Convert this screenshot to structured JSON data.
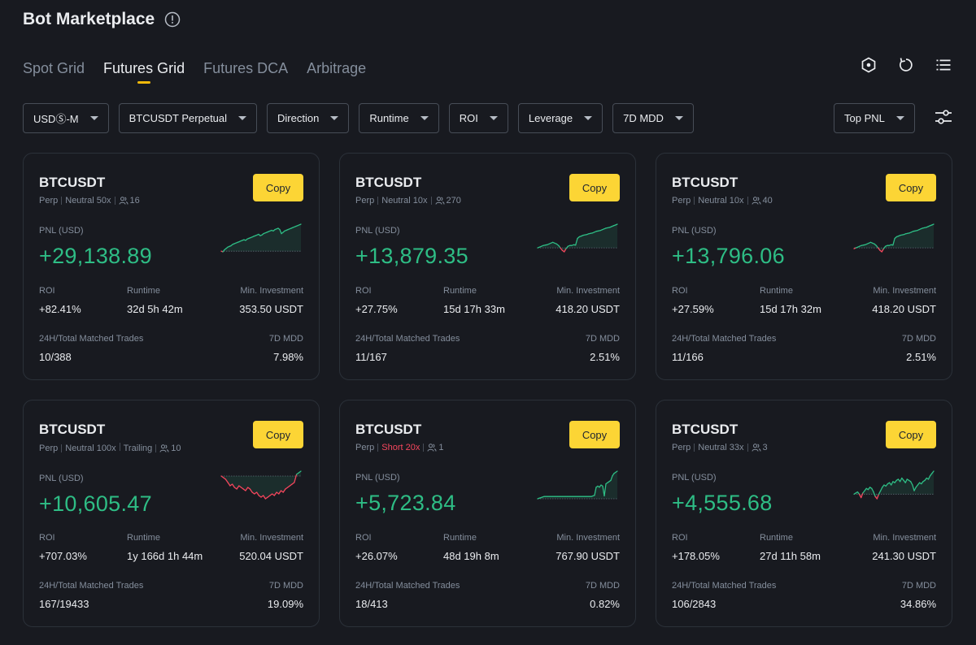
{
  "header": {
    "title": "Bot Marketplace"
  },
  "tabs": [
    {
      "label": "Spot Grid",
      "active": false
    },
    {
      "label": "Futures Grid",
      "active": true
    },
    {
      "label": "Futures DCA",
      "active": false
    },
    {
      "label": "Arbitrage",
      "active": false
    }
  ],
  "filters": [
    {
      "label": "USDⓈ-M"
    },
    {
      "label": "BTCUSDT Perpetual"
    },
    {
      "label": "Direction"
    },
    {
      "label": "Runtime"
    },
    {
      "label": "ROI"
    },
    {
      "label": "Leverage"
    },
    {
      "label": "7D MDD"
    }
  ],
  "sort": {
    "label": "Top PNL"
  },
  "labels": {
    "copy": "Copy",
    "pnl": "PNL (USD)",
    "roi": "ROI",
    "runtime": "Runtime",
    "min_investment": "Min. Investment",
    "matched_trades": "24H/Total Matched Trades",
    "mdd": "7D MDD"
  },
  "colors": {
    "up": "#2ebd85",
    "down": "#f6465d",
    "accent": "#fcd535"
  },
  "cards": [
    {
      "pair": "BTCUSDT",
      "type": "Perp",
      "direction": "Neutral 50x",
      "trailing": "",
      "copiers": "16",
      "pnl": "+29,138.89",
      "roi": "+82.41%",
      "runtime": "32d 5h 42m",
      "min_investment": "353.50 USDT",
      "matched_trades": "10/388",
      "mdd": "7.98%",
      "spark": [
        0,
        -0.5,
        1,
        2,
        3,
        3.5,
        4,
        5,
        5.5,
        6,
        6.5,
        7,
        7.5,
        8,
        8.5,
        8,
        9,
        9.5,
        10,
        10.5,
        11,
        11.5,
        12,
        12.5,
        11.5,
        12,
        13,
        13.5,
        14,
        14.5,
        15,
        15.5,
        15,
        16,
        16.5,
        17,
        16,
        13,
        14,
        15,
        15.5,
        16,
        16.5,
        17,
        17.5,
        18,
        18.5,
        19,
        19.5,
        20
      ]
    },
    {
      "pair": "BTCUSDT",
      "type": "Perp",
      "direction": "Neutral 10x",
      "trailing": "",
      "copiers": "270",
      "pnl": "+13,879.35",
      "roi": "+27.75%",
      "runtime": "15d 17h 33m",
      "min_investment": "418.20 USDT",
      "matched_trades": "11/167",
      "mdd": "2.51%",
      "spark": [
        0,
        1,
        2,
        3,
        3.5,
        4,
        5,
        6,
        7,
        6,
        5,
        3,
        0,
        -3,
        -5,
        -1,
        2,
        3,
        3,
        4,
        3.5,
        12,
        14,
        15,
        16,
        16.5,
        17,
        18,
        18.5,
        19,
        20,
        21,
        21.5,
        22,
        23,
        24,
        25,
        25.5,
        26,
        27,
        28,
        29,
        30
      ]
    },
    {
      "pair": "BTCUSDT",
      "type": "Perp",
      "direction": "Neutral 10x",
      "trailing": "",
      "copiers": "40",
      "pnl": "+13,796.06",
      "roi": "+27.59%",
      "runtime": "15d 17h 32m",
      "min_investment": "418.20 USDT",
      "matched_trades": "11/166",
      "mdd": "2.51%",
      "spark": [
        -1,
        0,
        1,
        2,
        3,
        3.5,
        4,
        5,
        6,
        7,
        6,
        5,
        3,
        0,
        -3,
        -5,
        -1,
        2,
        3,
        3,
        4,
        3.5,
        12,
        14,
        15,
        16,
        16.5,
        17,
        18,
        18.5,
        19,
        20,
        21,
        21.5,
        22,
        23,
        24,
        25,
        25.5,
        26,
        27,
        28,
        29,
        30
      ]
    },
    {
      "pair": "BTCUSDT",
      "type": "Perp",
      "direction": "Neutral 100x",
      "trailing": "Trailing",
      "copiers": "10",
      "pnl": "+10,605.47",
      "roi": "+707.03%",
      "runtime": "1y 166d 1h 44m",
      "min_investment": "520.04 USDT",
      "matched_trades": "167/19433",
      "mdd": "19.09%",
      "spark": [
        0,
        -1,
        -2,
        -4,
        -6,
        -5,
        -7,
        -8,
        -6,
        -7,
        -8,
        -9,
        -7,
        -8,
        -10,
        -11,
        -10,
        -12,
        -13,
        -12,
        -14,
        -13,
        -12,
        -11,
        -12,
        -10,
        -11,
        -9,
        -10,
        -8,
        -7,
        -6,
        -5,
        -4,
        1,
        2,
        3
      ]
    },
    {
      "pair": "BTCUSDT",
      "type": "Perp",
      "direction": "Short 20x",
      "trailing": "",
      "copiers": "1",
      "pnl": "+5,723.84",
      "roi": "+26.07%",
      "runtime": "48d 19h 8m",
      "min_investment": "767.90 USDT",
      "matched_trades": "18/413",
      "mdd": "0.82%",
      "spark": [
        0,
        0.5,
        1,
        1.5,
        2,
        2,
        2,
        2,
        2,
        2,
        2,
        2,
        2,
        2,
        2,
        2,
        2,
        2,
        2,
        2,
        2,
        2,
        2,
        2,
        2,
        2,
        2,
        2,
        2,
        2,
        2,
        2,
        2,
        2,
        2.5,
        3,
        10,
        11,
        10,
        12,
        11,
        2.5,
        13,
        14,
        15,
        16,
        20,
        22,
        23,
        24
      ]
    },
    {
      "pair": "BTCUSDT",
      "type": "Perp",
      "direction": "Neutral 33x",
      "trailing": "",
      "copiers": "3",
      "pnl": "+4,555.68",
      "roi": "+178.05%",
      "runtime": "27d 11h 58m",
      "min_investment": "241.30 USDT",
      "matched_trades": "106/2843",
      "mdd": "34.86%",
      "spark": [
        0,
        1,
        2,
        0,
        -3,
        1,
        3,
        5,
        4,
        6,
        5,
        2,
        -2,
        -4,
        0,
        3,
        6,
        8,
        7,
        9,
        10,
        8,
        11,
        10,
        12,
        13,
        11,
        14,
        12,
        10,
        13,
        12,
        11,
        8,
        3,
        6,
        8,
        10,
        9,
        11,
        12,
        14,
        13,
        16,
        18,
        20
      ]
    }
  ]
}
